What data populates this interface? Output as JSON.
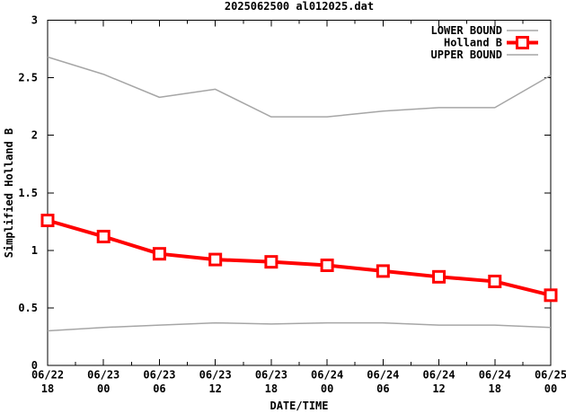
{
  "chart_data": {
    "type": "line",
    "title": "2025062500 al012025.dat",
    "xlabel": "DATE/TIME",
    "ylabel": "Simplified Holland B",
    "ylim": [
      0,
      3
    ],
    "grid": false,
    "legend_position": "top-right-inside",
    "background_color": "#ffffff",
    "axis_color": "#000000",
    "bound_color": "#a6a6a6",
    "holland_color": "#ff0000",
    "categories": [
      {
        "date": "06/22",
        "time": "18"
      },
      {
        "date": "06/23",
        "time": "00"
      },
      {
        "date": "06/23",
        "time": "06"
      },
      {
        "date": "06/23",
        "time": "12"
      },
      {
        "date": "06/23",
        "time": "18"
      },
      {
        "date": "06/24",
        "time": "00"
      },
      {
        "date": "06/24",
        "time": "06"
      },
      {
        "date": "06/24",
        "time": "12"
      },
      {
        "date": "06/24",
        "time": "18"
      },
      {
        "date": "06/25",
        "time": "00"
      }
    ],
    "yticks": [
      {
        "label": "0",
        "value": 0
      },
      {
        "label": "0.5",
        "value": 0.5
      },
      {
        "label": "1",
        "value": 1
      },
      {
        "label": "1.5",
        "value": 1.5
      },
      {
        "label": "2",
        "value": 2
      },
      {
        "label": "2.5",
        "value": 2.5
      },
      {
        "label": "3",
        "value": 3
      }
    ],
    "series": [
      {
        "name": "LOWER BOUND",
        "color": "#a6a6a6",
        "line_width": 1.5,
        "marker": "none",
        "values": [
          0.3,
          0.33,
          0.35,
          0.37,
          0.36,
          0.37,
          0.37,
          0.35,
          0.35,
          0.33
        ]
      },
      {
        "name": "Holland B",
        "color": "#ff0000",
        "line_width": 4,
        "marker": "open-square",
        "values": [
          1.26,
          1.12,
          0.97,
          0.92,
          0.9,
          0.87,
          0.82,
          0.77,
          0.73,
          0.61
        ]
      },
      {
        "name": "UPPER BOUND",
        "color": "#a6a6a6",
        "line_width": 1.5,
        "marker": "none",
        "values": [
          2.68,
          2.53,
          2.33,
          2.4,
          2.16,
          2.16,
          2.21,
          2.24,
          2.24,
          2.52
        ]
      }
    ]
  }
}
